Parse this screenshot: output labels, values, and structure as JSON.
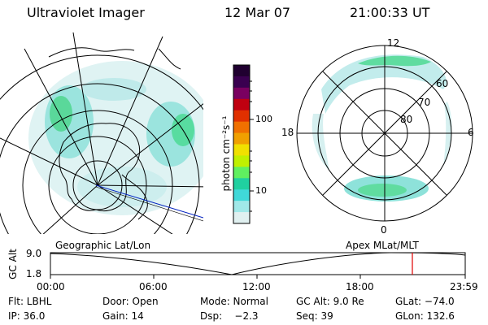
{
  "header": {
    "title": "Ultraviolet Imager",
    "date": "12 Mar 07",
    "time": "21:00:33 UT"
  },
  "colorbar": {
    "unit_label": "photon cm⁻²s⁻¹",
    "ticks": [
      "100",
      "10"
    ],
    "colors": [
      "#200030",
      "#3a0050",
      "#7a0060",
      "#c00010",
      "#e03000",
      "#f07000",
      "#f0a000",
      "#f0e000",
      "#c0f000",
      "#60f060",
      "#20d0a0",
      "#40d8d8",
      "#a0e8e8",
      "#e0f0f0"
    ]
  },
  "left_panel": {
    "label": "Geographic Lat/Lon"
  },
  "right_panel": {
    "label": "Apex MLat/MLT",
    "mlt_labels": [
      "12",
      "18",
      "6",
      "0"
    ],
    "lat_labels": [
      "60",
      "70",
      "80"
    ]
  },
  "timeline": {
    "ylabel": "GC Alt",
    "yticks": [
      "9.0",
      "1.8"
    ],
    "xticks": [
      "00:00",
      "06:00",
      "12:00",
      "18:00",
      "23:59"
    ],
    "marker_color": "#e00000"
  },
  "status": {
    "row1": {
      "filter": "Flt: LBHL",
      "door": "Door: Open",
      "mode": "Mode: Normal",
      "gcalt": "GC Alt: 9.0 Re",
      "glat": "GLat: −74.0"
    },
    "row2": {
      "ip": "IP: 36.0",
      "gain": "Gain: 14",
      "dsp": "Dsp:    −2.3",
      "seq": "Seq: 39",
      "glon": "GLon: 132.6"
    }
  }
}
